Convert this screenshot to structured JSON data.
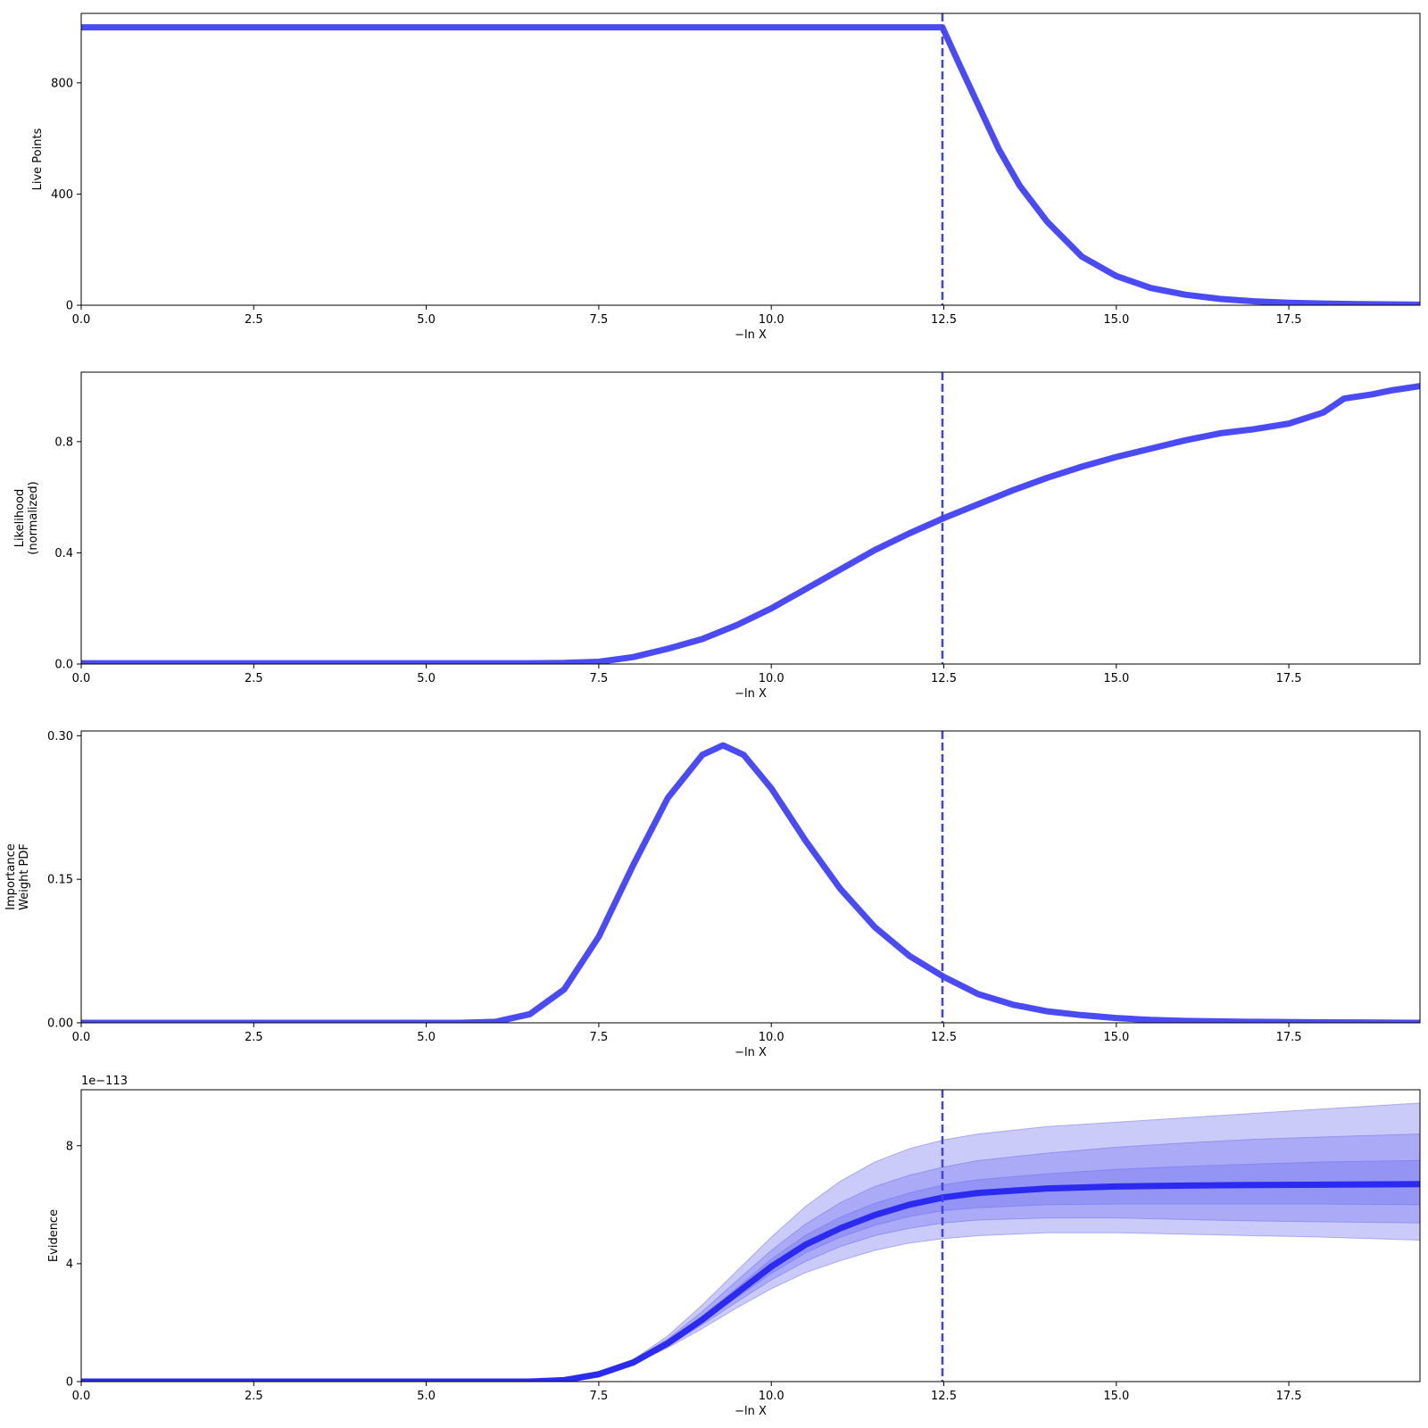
{
  "chart_data": [
    {
      "type": "line",
      "xlabel": "−ln X",
      "ylabel": [
        "Live Points"
      ],
      "xlim": [
        0,
        19.4
      ],
      "ylim": [
        0,
        1050
      ],
      "x_ticks": [
        "0.0",
        "2.5",
        "5.0",
        "7.5",
        "10.0",
        "12.5",
        "15.0",
        "17.5"
      ],
      "x_tick_values": [
        0,
        2.5,
        5,
        7.5,
        10,
        12.5,
        15,
        17.5
      ],
      "y_ticks": [
        "0",
        "400",
        "800"
      ],
      "y_tick_values": [
        0,
        400,
        800
      ],
      "line_color": "#4b4bf5",
      "vline_x": 12.48,
      "series": [
        {
          "x": [
            0,
            12.45,
            12.48,
            12.7,
            13.0,
            13.3,
            13.6,
            14.0,
            14.5,
            15.0,
            15.5,
            16.0,
            16.5,
            17.0,
            17.5,
            18.0,
            18.5,
            19.4
          ],
          "values": [
            1000,
            1000,
            1000,
            880,
            720,
            560,
            430,
            300,
            175,
            105,
            62,
            38,
            23,
            14,
            9,
            6,
            4,
            2
          ]
        }
      ]
    },
    {
      "type": "line",
      "xlabel": "−ln X",
      "ylabel": [
        "Likelihood",
        "(normalized)"
      ],
      "xlim": [
        0,
        19.4
      ],
      "ylim": [
        0,
        1.05
      ],
      "x_ticks": [
        "0.0",
        "2.5",
        "5.0",
        "7.5",
        "10.0",
        "12.5",
        "15.0",
        "17.5"
      ],
      "x_tick_values": [
        0,
        2.5,
        5,
        7.5,
        10,
        12.5,
        15,
        17.5
      ],
      "y_ticks": [
        "0.0",
        "0.4",
        "0.8"
      ],
      "y_tick_values": [
        0,
        0.4,
        0.8
      ],
      "line_color": "#4b4bf5",
      "vline_x": 12.48,
      "series": [
        {
          "x": [
            0,
            6.5,
            7.0,
            7.5,
            8.0,
            8.5,
            9.0,
            9.5,
            10.0,
            10.5,
            11.0,
            11.5,
            12.0,
            12.5,
            13.0,
            13.5,
            14.0,
            14.5,
            15.0,
            15.5,
            16.0,
            16.5,
            17.0,
            17.5,
            18.0,
            18.3,
            18.7,
            19.0,
            19.4
          ],
          "values": [
            0.003,
            0.003,
            0.004,
            0.008,
            0.025,
            0.055,
            0.09,
            0.14,
            0.2,
            0.27,
            0.34,
            0.41,
            0.47,
            0.525,
            0.575,
            0.625,
            0.67,
            0.71,
            0.745,
            0.775,
            0.805,
            0.83,
            0.845,
            0.865,
            0.905,
            0.955,
            0.97,
            0.985,
            1.0
          ]
        }
      ]
    },
    {
      "type": "line",
      "xlabel": "−ln X",
      "ylabel": [
        "Importance",
        "Weight PDF"
      ],
      "xlim": [
        0,
        19.4
      ],
      "ylim": [
        0,
        0.305
      ],
      "x_ticks": [
        "0.0",
        "2.5",
        "5.0",
        "7.5",
        "10.0",
        "12.5",
        "15.0",
        "17.5"
      ],
      "x_tick_values": [
        0,
        2.5,
        5,
        7.5,
        10,
        12.5,
        15,
        17.5
      ],
      "y_ticks": [
        "0.00",
        "0.15",
        "0.30"
      ],
      "y_tick_values": [
        0,
        0.15,
        0.3
      ],
      "line_color": "#4b4bf5",
      "vline_x": 12.48,
      "series": [
        {
          "x": [
            0,
            5.5,
            6.0,
            6.5,
            7.0,
            7.5,
            8.0,
            8.5,
            9.0,
            9.3,
            9.6,
            10.0,
            10.5,
            11.0,
            11.5,
            12.0,
            12.5,
            13.0,
            13.5,
            14.0,
            14.5,
            15.0,
            15.5,
            16.0,
            17.0,
            18.0,
            19.4
          ],
          "values": [
            0,
            0,
            0.001,
            0.009,
            0.035,
            0.09,
            0.165,
            0.235,
            0.28,
            0.29,
            0.28,
            0.245,
            0.19,
            0.14,
            0.1,
            0.07,
            0.048,
            0.03,
            0.019,
            0.012,
            0.008,
            0.005,
            0.003,
            0.002,
            0.001,
            0.0005,
            0
          ]
        }
      ]
    },
    {
      "type": "area",
      "xlabel": "−ln X",
      "ylabel": [
        "Evidence"
      ],
      "offset_text": "1e−113",
      "xlim": [
        0,
        19.4
      ],
      "ylim": [
        0,
        9.9
      ],
      "x_ticks": [
        "0.0",
        "2.5",
        "5.0",
        "7.5",
        "10.0",
        "12.5",
        "15.0",
        "17.5"
      ],
      "x_tick_values": [
        0,
        2.5,
        5,
        7.5,
        10,
        12.5,
        15,
        17.5
      ],
      "y_ticks": [
        "0",
        "4",
        "8"
      ],
      "y_tick_values": [
        0,
        4,
        8
      ],
      "line_color": "#2a2af0",
      "band_color": "#7070f0",
      "vline_x": 12.48,
      "x": [
        0,
        6.5,
        7.0,
        7.5,
        8.0,
        8.5,
        9.0,
        9.5,
        10.0,
        10.5,
        11.0,
        11.5,
        12.0,
        12.5,
        13.0,
        14.0,
        15.0,
        16.0,
        17.0,
        18.0,
        19.4
      ],
      "median": [
        0,
        0,
        0.05,
        0.25,
        0.65,
        1.3,
        2.1,
        3.0,
        3.9,
        4.65,
        5.2,
        5.65,
        6.0,
        6.25,
        6.4,
        6.55,
        6.62,
        6.65,
        6.67,
        6.68,
        6.7
      ],
      "bands": [
        {
          "lower": [
            0,
            0,
            0.05,
            0.22,
            0.6,
            1.15,
            1.8,
            2.5,
            3.15,
            3.7,
            4.1,
            4.45,
            4.7,
            4.85,
            4.95,
            5.05,
            5.05,
            5.0,
            4.95,
            4.9,
            4.8
          ],
          "upper": [
            0,
            0,
            0.06,
            0.3,
            0.75,
            1.55,
            2.6,
            3.75,
            4.9,
            5.95,
            6.8,
            7.45,
            7.9,
            8.2,
            8.4,
            8.65,
            8.8,
            8.95,
            9.1,
            9.25,
            9.45
          ]
        },
        {
          "lower": [
            0,
            0,
            0.05,
            0.23,
            0.62,
            1.2,
            1.93,
            2.7,
            3.45,
            4.08,
            4.58,
            4.95,
            5.2,
            5.38,
            5.48,
            5.55,
            5.55,
            5.5,
            5.45,
            5.42,
            5.38
          ],
          "upper": [
            0,
            0,
            0.055,
            0.28,
            0.72,
            1.45,
            2.38,
            3.42,
            4.45,
            5.35,
            6.07,
            6.62,
            7.0,
            7.28,
            7.5,
            7.75,
            7.95,
            8.1,
            8.22,
            8.3,
            8.4
          ]
        },
        {
          "lower": [
            0,
            0,
            0.05,
            0.24,
            0.63,
            1.25,
            2.02,
            2.85,
            3.67,
            4.37,
            4.9,
            5.3,
            5.6,
            5.8,
            5.9,
            6.0,
            6.02,
            6.02,
            6.02,
            6.02,
            6.0
          ],
          "upper": [
            0,
            0,
            0.053,
            0.27,
            0.69,
            1.38,
            2.22,
            3.17,
            4.15,
            4.97,
            5.58,
            6.05,
            6.4,
            6.68,
            6.85,
            7.05,
            7.2,
            7.3,
            7.38,
            7.45,
            7.5
          ]
        }
      ]
    }
  ]
}
